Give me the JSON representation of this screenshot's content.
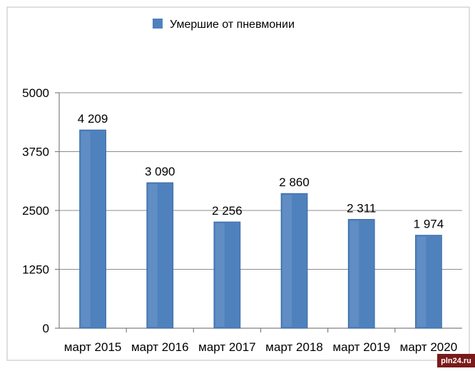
{
  "chart_data": {
    "type": "bar",
    "categories": [
      "март 2015",
      "март 2016",
      "март 2017",
      "март 2018",
      "март 2019",
      "март 2020"
    ],
    "series": [
      {
        "name": "Умершие от пневмонии",
        "values": [
          4209,
          3090,
          2256,
          2860,
          2311,
          1974
        ],
        "value_labels": [
          "4 209",
          "3 090",
          "2 256",
          "2 860",
          "2 311",
          "1 974"
        ]
      }
    ],
    "yticks": [
      "0",
      "1250",
      "2500",
      "3750",
      "5000"
    ],
    "ylim": [
      0,
      5000
    ],
    "grid": true,
    "legend_position": "top",
    "bar_color": "#4f81bd"
  },
  "watermark": "pln24.ru"
}
